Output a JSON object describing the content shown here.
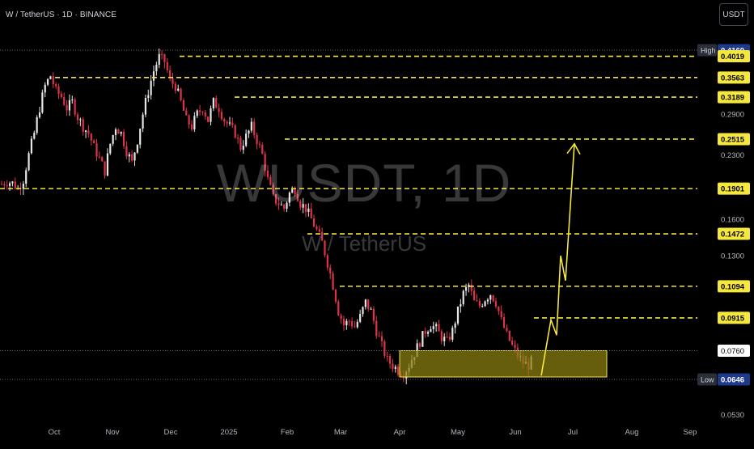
{
  "header": {
    "symbol_title": "W / TetherUS · 1D · BINANCE",
    "currency_button": "USDT"
  },
  "watermark": {
    "main": "WUSDT, 1D",
    "sub": "W / TetherUS"
  },
  "colors": {
    "background": "#000000",
    "up_candle": "#e6e6e6",
    "down_candle": "#e0334b",
    "level_line": "#f5e73c",
    "zone_fill": "#8a7d12",
    "axis_text": "#b2b5be",
    "price_tag_bg": "#f5e73c",
    "high_low_tag_bg": "#1e3a8a"
  },
  "chart_data": {
    "type": "candlestick",
    "x_ticks": [
      "Oct",
      "Nov",
      "Dec",
      "2025",
      "Feb",
      "Mar",
      "Apr",
      "May",
      "Jun",
      "Jul",
      "Aug",
      "Sep"
    ],
    "y_axis": {
      "scale": "log",
      "range": [
        0.05,
        0.43
      ],
      "tick_labels": [
        "0.2900",
        "0.2300",
        "0.1600",
        "0.1300",
        "0.0530"
      ]
    },
    "levels": [
      {
        "price": 0.416,
        "label": "0.4160",
        "tag": "High",
        "style": "dotted"
      },
      {
        "price": 0.4019,
        "label": "0.4019",
        "style": "dashed"
      },
      {
        "price": 0.3563,
        "label": "0.3563",
        "style": "dashed"
      },
      {
        "price": 0.3189,
        "label": "0.3189",
        "style": "dashed"
      },
      {
        "price": 0.2515,
        "label": "0.2515",
        "style": "dashed"
      },
      {
        "price": 0.1901,
        "label": "0.1901",
        "style": "dashed"
      },
      {
        "price": 0.1472,
        "label": "0.1472",
        "style": "dashed"
      },
      {
        "price": 0.1094,
        "label": "0.1094",
        "style": "dashed"
      },
      {
        "price": 0.0915,
        "label": "0.0915",
        "style": "dashed"
      },
      {
        "price": 0.076,
        "label": "0.0760",
        "tag": "current",
        "style": "dotted"
      },
      {
        "price": 0.0646,
        "label": "0.0646",
        "tag": "Low",
        "style": "dotted"
      }
    ],
    "support_zone": {
      "top": 0.076,
      "bottom": 0.0655,
      "from": "Apr",
      "to": "Jul-end"
    },
    "projection_path": [
      {
        "x": "Jun-mid",
        "price": 0.066
      },
      {
        "x": "Jun-end",
        "price": 0.0905
      },
      {
        "x": "Jun-end+",
        "price": 0.083
      },
      {
        "x": "Jul-start",
        "price": 0.13
      },
      {
        "x": "Jul-start+",
        "price": 0.113
      },
      {
        "x": "Jul-mid",
        "price": 0.245
      }
    ],
    "price_path": [
      0.195,
      0.198,
      0.196,
      0.19,
      0.2,
      0.23,
      0.26,
      0.3,
      0.34,
      0.36,
      0.33,
      0.32,
      0.3,
      0.31,
      0.285,
      0.27,
      0.26,
      0.24,
      0.225,
      0.21,
      0.245,
      0.27,
      0.26,
      0.235,
      0.22,
      0.25,
      0.29,
      0.33,
      0.37,
      0.4,
      0.39,
      0.35,
      0.34,
      0.31,
      0.28,
      0.27,
      0.29,
      0.3,
      0.28,
      0.31,
      0.3,
      0.28,
      0.27,
      0.26,
      0.24,
      0.255,
      0.27,
      0.25,
      0.23,
      0.2,
      0.18,
      0.175,
      0.17,
      0.185,
      0.19,
      0.175,
      0.17,
      0.16,
      0.15,
      0.14,
      0.125,
      0.11,
      0.095,
      0.088,
      0.09,
      0.087,
      0.092,
      0.1,
      0.095,
      0.085,
      0.078,
      0.072,
      0.07,
      0.068,
      0.067,
      0.07,
      0.075,
      0.08,
      0.085,
      0.088,
      0.086,
      0.082,
      0.08,
      0.085,
      0.095,
      0.105,
      0.11,
      0.1,
      0.098,
      0.102,
      0.105,
      0.1,
      0.09,
      0.083,
      0.078,
      0.074,
      0.071,
      0.07,
      0.073
    ]
  }
}
